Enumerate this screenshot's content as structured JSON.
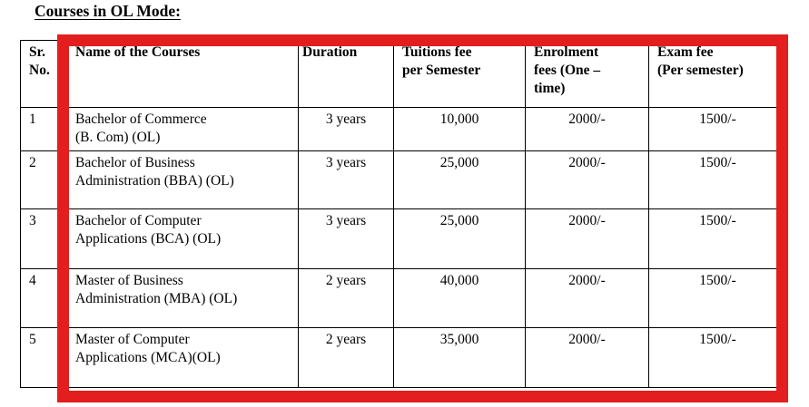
{
  "title": "Courses in OL Mode:",
  "annotation": {
    "type": "highlight-rectangle",
    "color": "#e31e1e"
  },
  "table": {
    "headers": [
      {
        "key": "sr",
        "label": "Sr.\nNo."
      },
      {
        "key": "name",
        "label": "Name of the Courses"
      },
      {
        "key": "duration",
        "label": "Duration"
      },
      {
        "key": "tuition",
        "label": "Tuitions fee\nper Semester"
      },
      {
        "key": "enrol",
        "label": "Enrolment\nfees (One –\ntime)"
      },
      {
        "key": "exam",
        "label": "Exam fee\n(Per semester)"
      }
    ],
    "rows": [
      {
        "sr": "1",
        "name": "Bachelor of Commerce\n(B. Com) (OL)",
        "duration": "3 years",
        "tuition": "10,000",
        "enrol": "2000/-",
        "exam": "1500/-"
      },
      {
        "sr": "2",
        "name": "Bachelor of Business\nAdministration (BBA) (OL)",
        "duration": "3 years",
        "tuition": "25,000",
        "enrol": "2000/-",
        "exam": "1500/-"
      },
      {
        "sr": "3",
        "name": "Bachelor of Computer\nApplications (BCA) (OL)",
        "duration": "3 years",
        "tuition": "25,000",
        "enrol": "2000/-",
        "exam": "1500/-"
      },
      {
        "sr": "4",
        "name": "Master of Business\nAdministration (MBA) (OL)",
        "duration": "2 years",
        "tuition": "40,000",
        "enrol": "2000/-",
        "exam": "1500/-"
      },
      {
        "sr": "5",
        "name": "Master of Computer\nApplications (MCA)(OL)",
        "duration": "2 years",
        "tuition": "35,000",
        "enrol": "2000/-",
        "exam": "1500/-"
      }
    ]
  }
}
